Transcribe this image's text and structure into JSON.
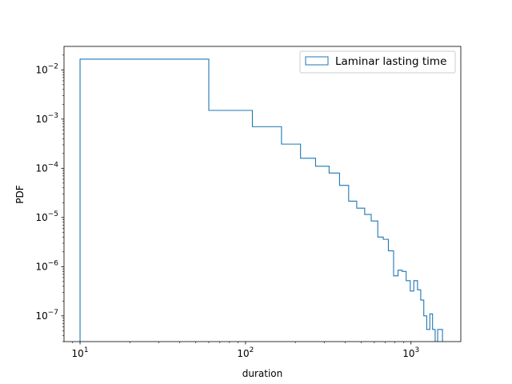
{
  "chart_data": {
    "type": "histogram",
    "histtype": "step",
    "xscale": "log",
    "yscale": "log",
    "xlabel": "duration",
    "ylabel": "PDF",
    "xlim": [
      8,
      2000
    ],
    "ylim": [
      3e-08,
      0.03
    ],
    "x_ticks": [
      {
        "value": 10,
        "mantissa": "10",
        "exponent": "1"
      },
      {
        "value": 100,
        "mantissa": "10",
        "exponent": "2"
      },
      {
        "value": 1000,
        "mantissa": "10",
        "exponent": "3"
      }
    ],
    "y_ticks": [
      {
        "value": 1e-07,
        "mantissa": "10",
        "exponent": "−7"
      },
      {
        "value": 1e-06,
        "mantissa": "10",
        "exponent": "−6"
      },
      {
        "value": 1e-05,
        "mantissa": "10",
        "exponent": "−5"
      },
      {
        "value": 0.0001,
        "mantissa": "10",
        "exponent": "−4"
      },
      {
        "value": 0.001,
        "mantissa": "10",
        "exponent": "−3"
      },
      {
        "value": 0.01,
        "mantissa": "10",
        "exponent": "−2"
      }
    ],
    "legend": {
      "position": "upper right",
      "label": "Laminar lasting time"
    },
    "series": [
      {
        "name": "Laminar lasting time",
        "color": "#1f77b4",
        "bins": [
          {
            "x0": 10,
            "x1": 60,
            "y": 0.0165
          },
          {
            "x0": 60,
            "x1": 110,
            "y": 0.0015
          },
          {
            "x0": 110,
            "x1": 165,
            "y": 0.0007
          },
          {
            "x0": 165,
            "x1": 215,
            "y": 0.00031
          },
          {
            "x0": 215,
            "x1": 265,
            "y": 0.00016
          },
          {
            "x0": 265,
            "x1": 320,
            "y": 0.00011
          },
          {
            "x0": 320,
            "x1": 370,
            "y": 8e-05
          },
          {
            "x0": 370,
            "x1": 420,
            "y": 4.5e-05
          },
          {
            "x0": 420,
            "x1": 470,
            "y": 2.15e-05
          },
          {
            "x0": 470,
            "x1": 525,
            "y": 1.55e-05
          },
          {
            "x0": 525,
            "x1": 575,
            "y": 1.15e-05
          },
          {
            "x0": 575,
            "x1": 630,
            "y": 8.5e-06
          },
          {
            "x0": 630,
            "x1": 680,
            "y": 4e-06
          },
          {
            "x0": 680,
            "x1": 730,
            "y": 3.6e-06
          },
          {
            "x0": 730,
            "x1": 785,
            "y": 2.1e-06
          },
          {
            "x0": 785,
            "x1": 835,
            "y": 6.5e-07
          },
          {
            "x0": 835,
            "x1": 885,
            "y": 8.5e-07
          },
          {
            "x0": 885,
            "x1": 935,
            "y": 8e-07
          },
          {
            "x0": 935,
            "x1": 990,
            "y": 5.2e-07
          },
          {
            "x0": 990,
            "x1": 1040,
            "y": 3.2e-07
          },
          {
            "x0": 1040,
            "x1": 1095,
            "y": 5.2e-07
          },
          {
            "x0": 1095,
            "x1": 1145,
            "y": 3.4e-07
          },
          {
            "x0": 1145,
            "x1": 1195,
            "y": 2.1e-07
          },
          {
            "x0": 1195,
            "x1": 1245,
            "y": 1e-07
          },
          {
            "x0": 1245,
            "x1": 1300,
            "y": 5.3e-08
          },
          {
            "x0": 1300,
            "x1": 1350,
            "y": 1.1e-07
          },
          {
            "x0": 1350,
            "x1": 1400,
            "y": 5.3e-08
          },
          {
            "x0": 1400,
            "x1": 1450,
            "y": 0
          },
          {
            "x0": 1450,
            "x1": 1500,
            "y": 5.3e-08
          },
          {
            "x0": 1500,
            "x1": 1550,
            "y": 5.3e-08
          }
        ]
      }
    ]
  }
}
